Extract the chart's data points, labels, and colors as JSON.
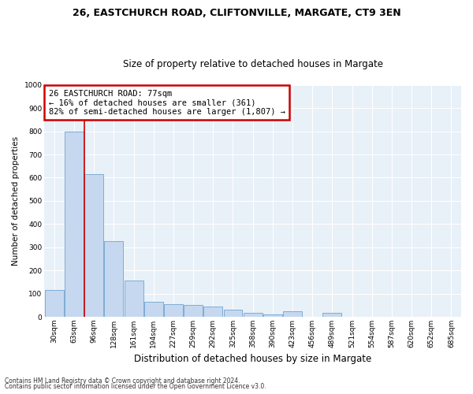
{
  "title1": "26, EASTCHURCH ROAD, CLIFTONVILLE, MARGATE, CT9 3EN",
  "title2": "Size of property relative to detached houses in Margate",
  "xlabel": "Distribution of detached houses by size in Margate",
  "ylabel": "Number of detached properties",
  "footnote1": "Contains HM Land Registry data © Crown copyright and database right 2024.",
  "footnote2": "Contains public sector information licensed under the Open Government Licence v3.0.",
  "bar_labels": [
    "30sqm",
    "63sqm",
    "96sqm",
    "128sqm",
    "161sqm",
    "194sqm",
    "227sqm",
    "259sqm",
    "292sqm",
    "325sqm",
    "358sqm",
    "390sqm",
    "423sqm",
    "456sqm",
    "489sqm",
    "521sqm",
    "554sqm",
    "587sqm",
    "620sqm",
    "652sqm",
    "685sqm"
  ],
  "bar_values": [
    115,
    800,
    615,
    325,
    155,
    65,
    55,
    50,
    45,
    30,
    18,
    10,
    25,
    0,
    18,
    0,
    0,
    0,
    0,
    0,
    0
  ],
  "bar_color": "#c5d8ef",
  "bar_edge_color": "#7eadd4",
  "bg_color": "#e8f0f8",
  "annotation_text": "26 EASTCHURCH ROAD: 77sqm\n← 16% of detached houses are smaller (361)\n82% of semi-detached houses are larger (1,807) →",
  "annotation_box_facecolor": "#ffffff",
  "annotation_box_edge": "#cc0000",
  "vline_color": "#cc0000",
  "vline_x": 1.5,
  "ylim": [
    0,
    1000
  ],
  "yticks": [
    0,
    100,
    200,
    300,
    400,
    500,
    600,
    700,
    800,
    900,
    1000
  ],
  "grid_color": "#ffffff",
  "title1_fontsize": 9,
  "title2_fontsize": 8.5,
  "ylabel_fontsize": 7.5,
  "xlabel_fontsize": 8.5,
  "tick_fontsize": 6.5,
  "annot_fontsize": 7.5,
  "footnote_fontsize": 5.5
}
